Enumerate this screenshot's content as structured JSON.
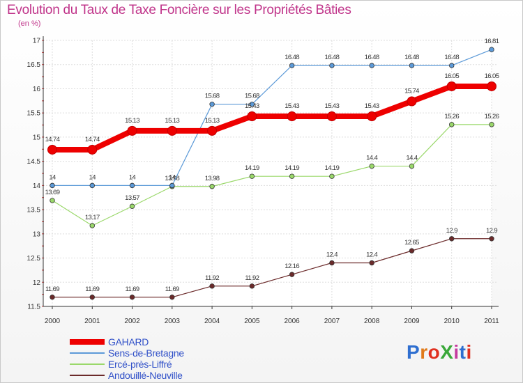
{
  "header": {
    "title": "Evolution du Taux de Taxe Foncière sur les Propriétés Bâties",
    "unit": "(en %)"
  },
  "logo": {
    "text": "ProXiti",
    "colors": [
      "#2f6fd0",
      "#e07a1a",
      "#e03020",
      "#3aa83a",
      "#c53a9e",
      "#2f6fd0",
      "#e03020"
    ]
  },
  "chart_data": {
    "type": "line",
    "x": [
      "2000",
      "2001",
      "2002",
      "2003",
      "2004",
      "2005",
      "2006",
      "2007",
      "2008",
      "2009",
      "2010",
      "2011"
    ],
    "ylim": [
      11.5,
      17
    ],
    "yticks": [
      "11.5",
      "12",
      "12.5",
      "13",
      "13.5",
      "14",
      "14.5",
      "15",
      "15.5",
      "16",
      "16.5",
      "17"
    ],
    "grid": true,
    "legend_position": "bottom-left",
    "series": [
      {
        "name": "Andouillé-Neuville",
        "color": "#6b2a2a",
        "values": [
          11.69,
          11.69,
          11.69,
          11.69,
          11.92,
          11.92,
          12.16,
          12.4,
          12.4,
          12.65,
          12.9,
          12.9
        ],
        "labels": [
          "11.69",
          "11.69",
          "11.69",
          "11.69",
          "11.92",
          "11.92",
          "12.16",
          "12.4",
          "12.4",
          "12.65",
          "12.9",
          "12.9"
        ]
      },
      {
        "name": "Ercé-près-Liffré",
        "color": "#9ad86a",
        "values": [
          13.69,
          13.17,
          13.57,
          13.98,
          13.98,
          14.19,
          14.19,
          14.19,
          14.4,
          14.4,
          15.26,
          15.26
        ],
        "labels": [
          "13.69",
          "13.17",
          "13.57",
          "13.98",
          "13.98",
          "14.19",
          "14.19",
          "14.19",
          "14.4",
          "14.4",
          "15.26",
          "15.26"
        ]
      },
      {
        "name": "Sens-de-Bretagne",
        "color": "#5c9ad8",
        "values": [
          14,
          14,
          14,
          14,
          15.68,
          15.68,
          16.48,
          16.48,
          16.48,
          16.48,
          16.48,
          16.81
        ],
        "labels": [
          "14",
          "14",
          "14",
          "14",
          "15.68",
          "15.68",
          "16.48",
          "16.48",
          "16.48",
          "16.48",
          "16.48",
          "16.81"
        ]
      },
      {
        "name": "GAHARD",
        "color": "#ee0000",
        "values": [
          14.74,
          14.74,
          15.13,
          15.13,
          15.13,
          15.43,
          15.43,
          15.43,
          15.43,
          15.74,
          16.05,
          16.05
        ],
        "labels": [
          "14.74",
          "14.74",
          "15.13",
          "15.13",
          "15.13",
          "15.43",
          "15.43",
          "15.43",
          "15.43",
          "15.74",
          "16.05",
          "16.05"
        ]
      }
    ],
    "legend": [
      {
        "name": "GAHARD",
        "color": "#ee0000"
      },
      {
        "name": "Sens-de-Bretagne",
        "color": "#5c9ad8"
      },
      {
        "name": "Ercé-près-Liffré",
        "color": "#9ad86a"
      },
      {
        "name": "Andouillé-Neuville",
        "color": "#6b2a2a"
      }
    ]
  }
}
